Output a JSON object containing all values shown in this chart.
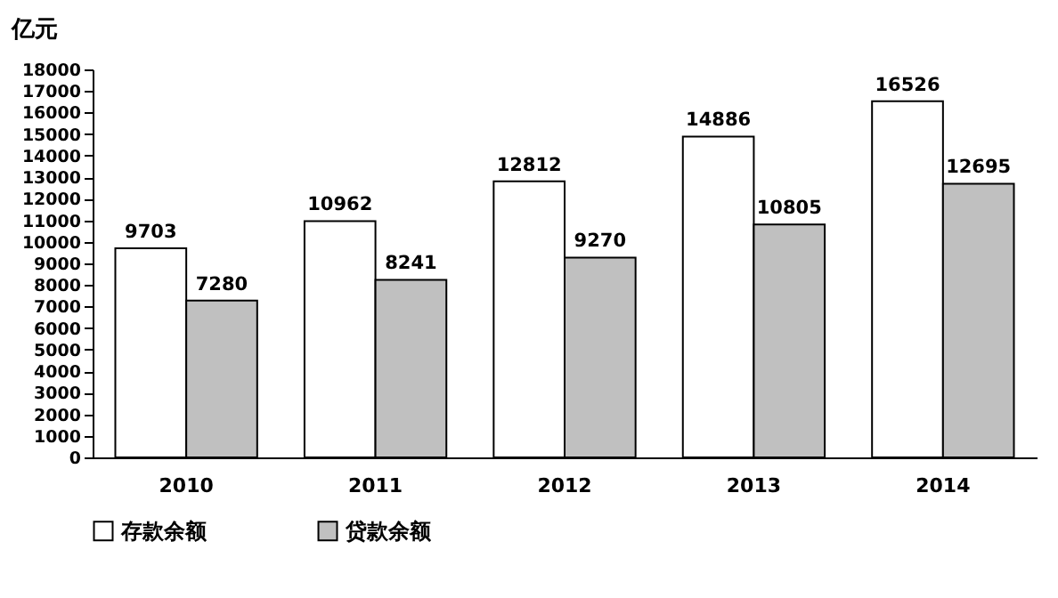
{
  "chart_data": {
    "type": "bar",
    "ylabel": "亿元",
    "categories": [
      "2010",
      "2011",
      "2012",
      "2013",
      "2014"
    ],
    "series": [
      {
        "name": "存款余额",
        "color": "#ffffff",
        "values": [
          9703,
          10962,
          12812,
          14886,
          16526
        ]
      },
      {
        "name": "贷款余额",
        "color": "#c0c0c0",
        "values": [
          7280,
          8241,
          9270,
          10805,
          12695
        ]
      }
    ],
    "ylim": [
      0,
      18000
    ],
    "yticks": [
      0,
      1000,
      2000,
      3000,
      4000,
      5000,
      6000,
      7000,
      8000,
      9000,
      10000,
      11000,
      12000,
      13000,
      14000,
      15000,
      16000,
      17000,
      18000
    ],
    "data_labels": true,
    "legend": "bottom",
    "grid": false
  }
}
